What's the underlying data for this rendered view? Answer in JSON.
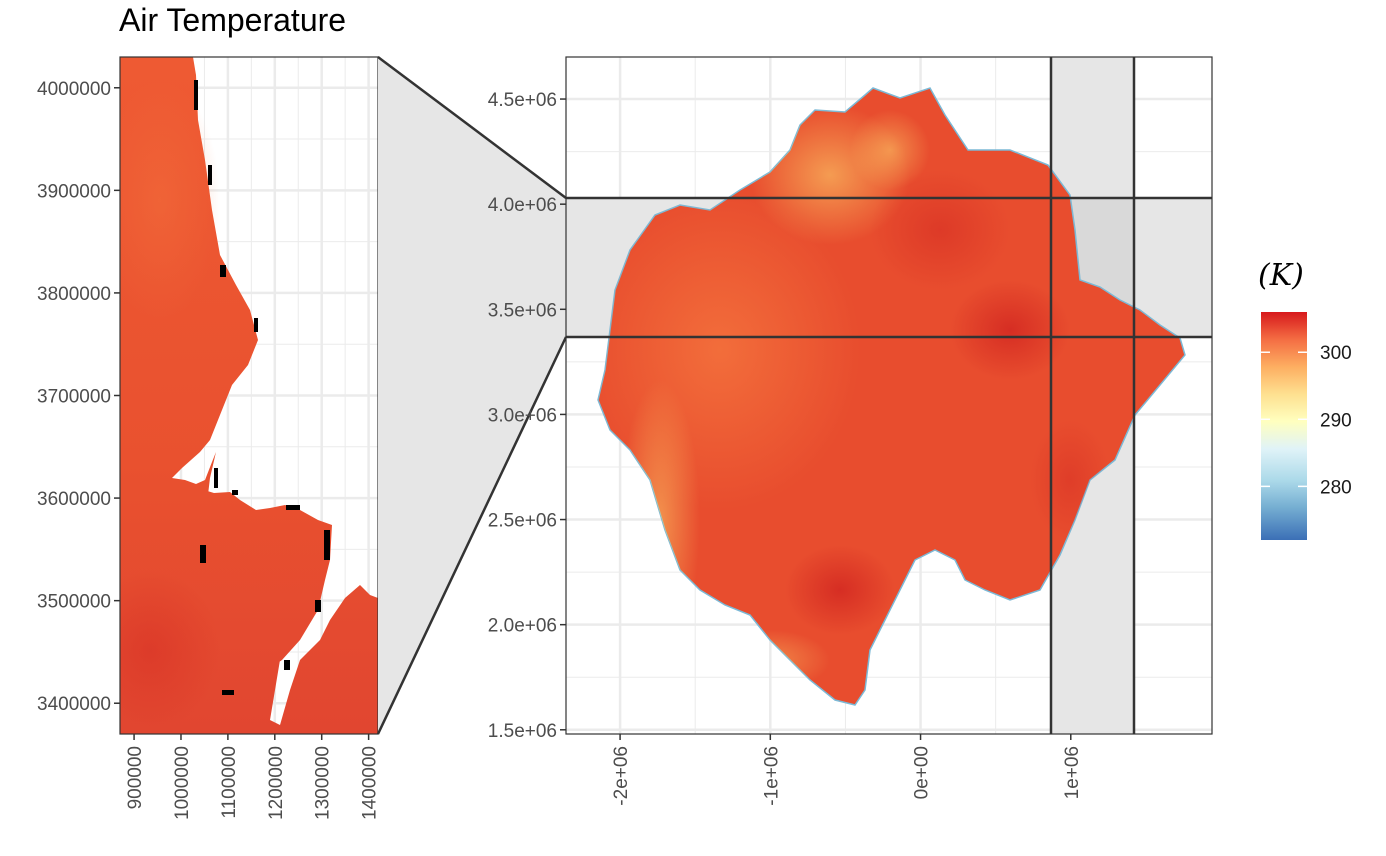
{
  "title": "Air Temperature",
  "colors": {
    "grid": "#ebebeb",
    "panel_border": "#333333",
    "highlight_fill": "#e6e6e6",
    "outside": "#ffffff",
    "temp_low": "#3b6fb6",
    "temp_mid": "#ffffbf",
    "temp_high": "#d7191c",
    "land_main": "#e4492e"
  },
  "chart_data": [
    {
      "type": "heatmap",
      "name": "inset-zoom",
      "xlim": [
        870000,
        1420000
      ],
      "ylim": [
        3370000,
        4030000
      ],
      "x_ticks": [
        900000,
        1000000,
        1100000,
        1200000,
        1300000,
        1400000
      ],
      "x_tick_labels": [
        "900000",
        "1000000",
        "1100000",
        "1200000",
        "1300000",
        "1400000"
      ],
      "y_ticks": [
        3400000,
        3500000,
        3600000,
        3700000,
        3800000,
        3900000,
        4000000
      ],
      "y_tick_labels": [
        "3400000",
        "3500000",
        "3600000",
        "3700000",
        "3800000",
        "3900000",
        "4000000"
      ],
      "grid": true
    },
    {
      "type": "heatmap",
      "name": "full-extent",
      "xlim": [
        -2360000,
        1940000
      ],
      "ylim": [
        1480000,
        4700000
      ],
      "x_ticks": [
        -2000000,
        -1000000,
        0,
        1000000
      ],
      "x_tick_labels": [
        "-2e+06",
        "-1e+06",
        "0e+00",
        "1e+06"
      ],
      "y_ticks": [
        1500000,
        2000000,
        2500000,
        3000000,
        3500000,
        4000000,
        4500000
      ],
      "y_tick_labels": [
        "1.5e+06",
        "2.0e+06",
        "2.5e+06",
        "3.0e+06",
        "3.5e+06",
        "4.0e+06",
        "4.5e+06"
      ],
      "grid": true,
      "zoom_window": {
        "x": [
          870000,
          1420000
        ],
        "y": [
          3370000,
          4030000
        ]
      }
    }
  ],
  "legend": {
    "title": "(K)",
    "unit_symbol": "K",
    "range": [
      272,
      306
    ],
    "ticks": [
      280,
      290,
      300
    ],
    "tick_labels": [
      "280",
      "290",
      "300"
    ],
    "placement": "right"
  }
}
